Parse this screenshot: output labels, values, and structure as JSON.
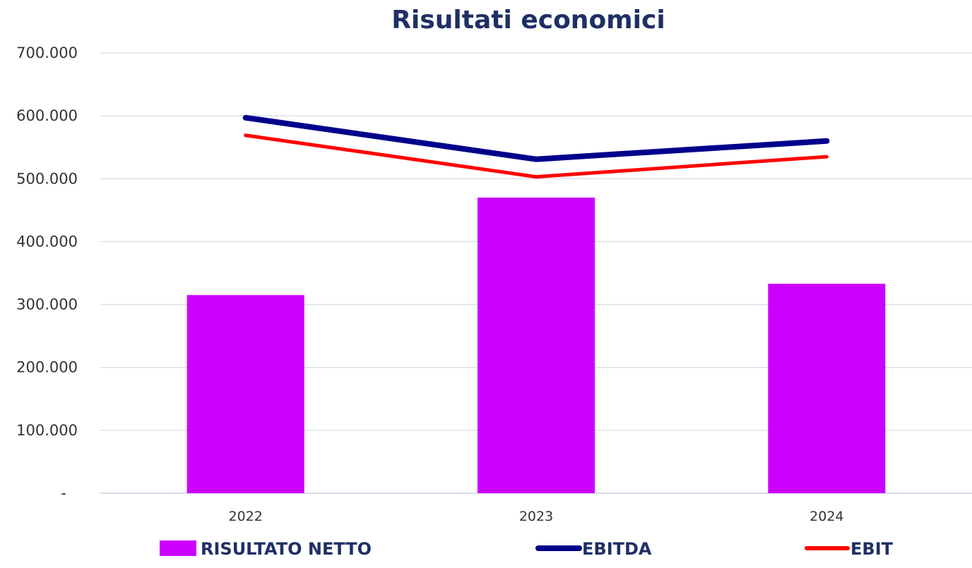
{
  "chart_data": {
    "type": "bar",
    "title": "Risultati economici",
    "categories": [
      "2022",
      "2023",
      "2024"
    ],
    "ylim": [
      0,
      700000
    ],
    "y_ticks": [
      {
        "value": 0,
        "label": "-"
      },
      {
        "value": 100000,
        "label": "100.000"
      },
      {
        "value": 200000,
        "label": "200.000"
      },
      {
        "value": 300000,
        "label": "300.000"
      },
      {
        "value": 400000,
        "label": "400.000"
      },
      {
        "value": 500000,
        "label": "500.000"
      },
      {
        "value": 600000,
        "label": "600.000"
      },
      {
        "value": 700000,
        "label": "700.000"
      }
    ],
    "grid": true,
    "legend_position": "bottom",
    "series": [
      {
        "name": "RISULTATO NETTO",
        "type": "bar",
        "color": "#cc00ff",
        "values": [
          315000,
          470000,
          333000
        ]
      },
      {
        "name": "EBITDA",
        "type": "line",
        "color": "#00008b",
        "values": [
          597000,
          531000,
          560000
        ]
      },
      {
        "name": "EBIT",
        "type": "line",
        "color": "#ff0000",
        "values": [
          569000,
          503000,
          535000
        ]
      }
    ]
  }
}
